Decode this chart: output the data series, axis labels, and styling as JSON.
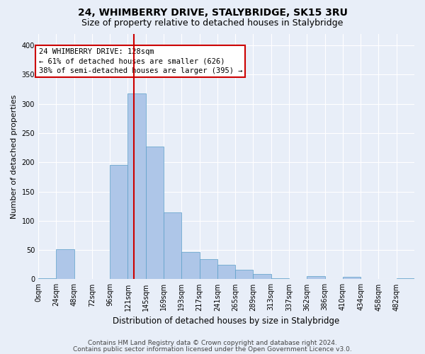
{
  "title": "24, WHIMBERRY DRIVE, STALYBRIDGE, SK15 3RU",
  "subtitle": "Size of property relative to detached houses in Stalybridge",
  "xlabel": "Distribution of detached houses by size in Stalybridge",
  "ylabel": "Number of detached properties",
  "bar_color": "#aec6e8",
  "bar_edge_color": "#5a9fc8",
  "background_color": "#e8eef8",
  "grid_color": "#ffffff",
  "vline_color": "#cc0000",
  "vline_x": 6,
  "categories": [
    "0sqm",
    "24sqm",
    "48sqm",
    "72sqm",
    "96sqm",
    "121sqm",
    "145sqm",
    "169sqm",
    "193sqm",
    "217sqm",
    "241sqm",
    "265sqm",
    "289sqm",
    "313sqm",
    "337sqm",
    "362sqm",
    "386sqm",
    "410sqm",
    "434sqm",
    "458sqm",
    "482sqm"
  ],
  "values": [
    2,
    51,
    0,
    0,
    195,
    318,
    227,
    114,
    46,
    35,
    25,
    16,
    9,
    2,
    0,
    5,
    0,
    4,
    0,
    0,
    2
  ],
  "ylim": [
    0,
    420
  ],
  "yticks": [
    0,
    50,
    100,
    150,
    200,
    250,
    300,
    350,
    400
  ],
  "annotation_text": "24 WHIMBERRY DRIVE: 128sqm\n← 61% of detached houses are smaller (626)\n38% of semi-detached houses are larger (395) →",
  "annotation_box_color": "#ffffff",
  "annotation_box_edge_color": "#cc0000",
  "footer_line1": "Contains HM Land Registry data © Crown copyright and database right 2024.",
  "footer_line2": "Contains public sector information licensed under the Open Government Licence v3.0.",
  "title_fontsize": 10,
  "subtitle_fontsize": 9,
  "xlabel_fontsize": 8.5,
  "ylabel_fontsize": 8,
  "tick_fontsize": 7,
  "annotation_fontsize": 7.5,
  "footer_fontsize": 6.5,
  "num_bins": 21,
  "vline_bin": 5.33
}
